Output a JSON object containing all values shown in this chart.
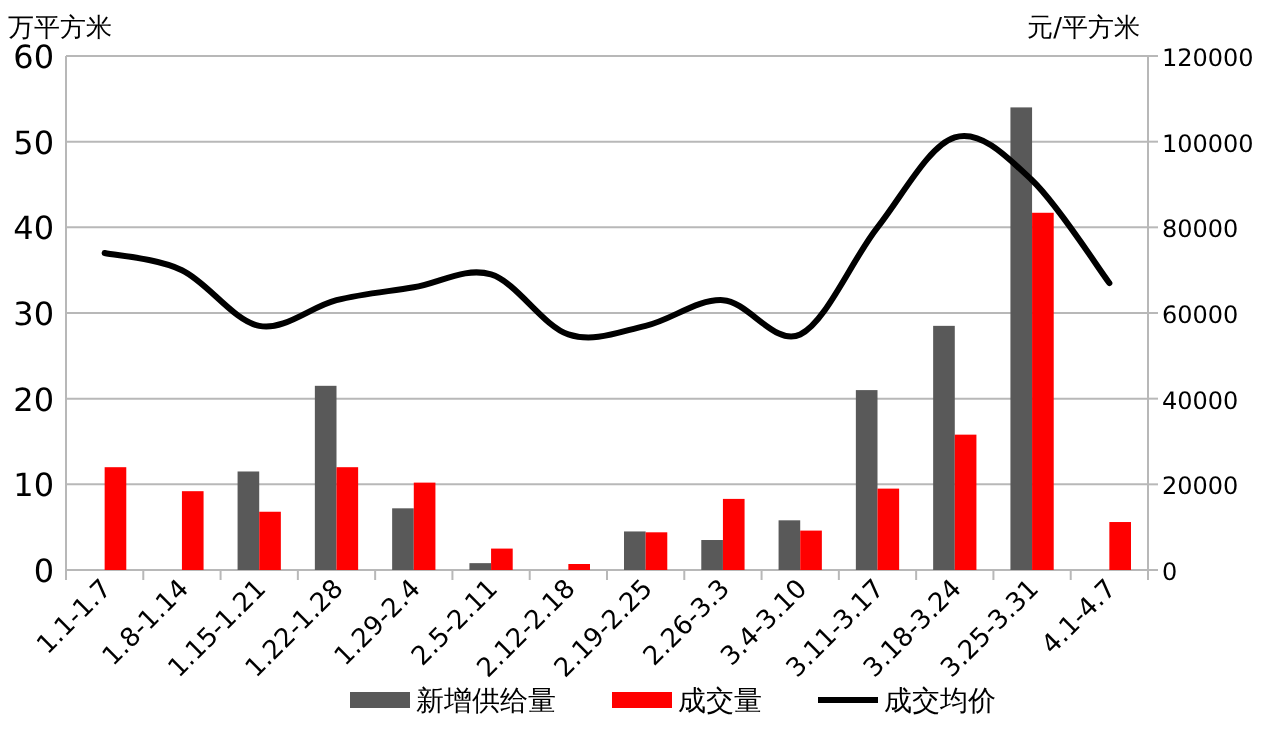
{
  "chart_data": {
    "type": "bar",
    "ylabel": "万平方米",
    "y2label": "元/平方米",
    "categories": [
      "1.1-1.7",
      "1.8-1.14",
      "1.15-1.21",
      "1.22-1.28",
      "1.29-2.4",
      "2.5-2.11",
      "2.12-2.18",
      "2.19-2.25",
      "2.26-3.3",
      "3.4-3.10",
      "3.11-3.17",
      "3.18-3.24",
      "3.25-3.31",
      "4.1-4.7"
    ],
    "series": [
      {
        "name": "新增供给量",
        "color": "#595959",
        "values": [
          null,
          null,
          11.5,
          21.5,
          7.2,
          0.8,
          null,
          4.5,
          3.5,
          5.8,
          21,
          28.5,
          54,
          null
        ]
      },
      {
        "name": "成交量",
        "color": "#ff0000",
        "values": [
          12,
          9.2,
          6.8,
          12,
          10.2,
          2.5,
          0.7,
          4.4,
          8.3,
          4.6,
          9.5,
          15.8,
          41.7,
          5.6
        ]
      },
      {
        "name": "成交均价",
        "type": "line",
        "axis": "y2",
        "color": "#000000",
        "values": [
          74000,
          70000,
          57000,
          63000,
          66000,
          69000,
          55000,
          57000,
          63000,
          55000,
          80000,
          101000,
          91000,
          67000
        ]
      }
    ],
    "ylim": [
      0,
      60
    ],
    "yticks": [
      0,
      10,
      20,
      30,
      40,
      50,
      60
    ],
    "y2lim": [
      0,
      120000
    ],
    "y2ticks": [
      0,
      20000,
      40000,
      60000,
      80000,
      100000,
      120000
    ],
    "grid": "y",
    "legend": "bottom"
  }
}
